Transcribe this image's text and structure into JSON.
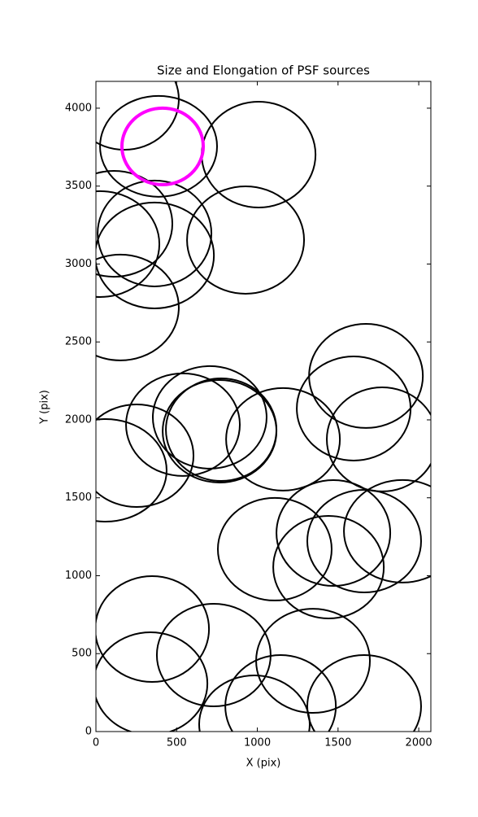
{
  "chart_data": {
    "type": "ellipse",
    "title": "Size and Elongation of PSF sources",
    "xlabel": "X (pix)",
    "ylabel": "Y (pix)",
    "xlim": [
      0,
      2075
    ],
    "ylim": [
      0,
      4172
    ],
    "xticks": [
      0,
      500,
      1000,
      1500,
      2000
    ],
    "yticks": [
      0,
      500,
      1000,
      1500,
      2000,
      2500,
      3000,
      3500,
      4000
    ],
    "series": [
      {
        "color": "#000000",
        "x": [
          176,
          388,
          1008,
          111,
          363,
          363,
          25,
          151,
          927,
          1673,
          1597,
          1773,
          539,
          252,
          60,
          705,
          766,
          776,
          1159,
          1899,
          1471,
          1662,
          1441,
          1108,
          348,
          338,
          730,
          1345,
          1144,
          982,
          1662
        ],
        "y": [
          4057,
          3755,
          3702,
          3258,
          3196,
          3055,
          3128,
          2721,
          3154,
          2282,
          2073,
          1875,
          1969,
          1770,
          1676,
          2016,
          1927,
          1937,
          1875,
          1285,
          1274,
          1222,
          1055,
          1170,
          658,
          308,
          491,
          454,
          162,
          47,
          162
        ],
        "widths": [
          675,
          725,
          705,
          725,
          705,
          736,
          736,
          725,
          725,
          705,
          705,
          685,
          705,
          705,
          756,
          705,
          705,
          685,
          705,
          725,
          705,
          705,
          685,
          705,
          705,
          705,
          705,
          705,
          685,
          685,
          705
        ],
        "heights": [
          647,
          647,
          679,
          679,
          679,
          679,
          679,
          679,
          689,
          668,
          668,
          668,
          658,
          658,
          658,
          658,
          658,
          658,
          658,
          658,
          679,
          658,
          658,
          658,
          679,
          658,
          658,
          668,
          658,
          627,
          658
        ]
      },
      {
        "color": "#ff00ff",
        "x": [
          413
        ],
        "y": [
          3755
        ],
        "widths": [
          504
        ],
        "heights": [
          491
        ]
      }
    ]
  }
}
